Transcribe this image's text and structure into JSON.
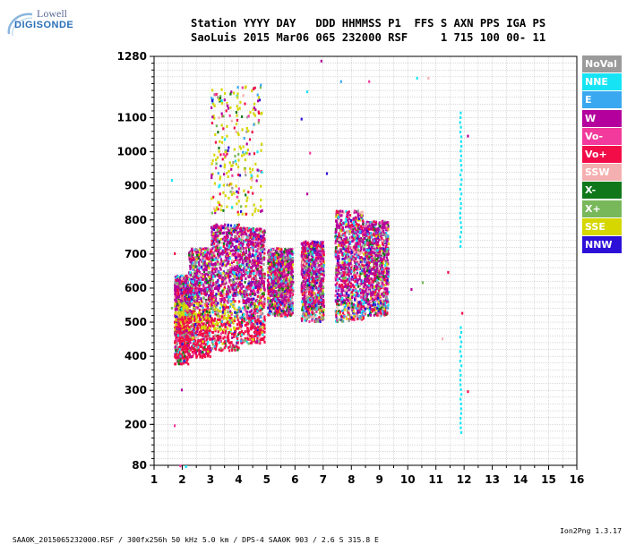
{
  "logo": {
    "line1": "Lowell",
    "line2": "DIGISONDE"
  },
  "header": {
    "line1": "Station YYYY DAY   DDD HHMMSS P1  FFS S AXN PPS IGA PS",
    "line2": "SaoLuis 2015 Mar06 065 232000 RSF     1 715 100 00- 11"
  },
  "legend": [
    {
      "label": "NoVal",
      "color": "#9a9a9a"
    },
    {
      "label": "NNE",
      "color": "#16e4f4"
    },
    {
      "label": "E",
      "color": "#3aa8f0"
    },
    {
      "label": "W",
      "color": "#b4009c"
    },
    {
      "label": "Vo-",
      "color": "#f23a9c"
    },
    {
      "label": "Vo+",
      "color": "#f20c48"
    },
    {
      "label": "SSW",
      "color": "#f4b0b0"
    },
    {
      "label": "X-",
      "color": "#10781a"
    },
    {
      "label": "X+",
      "color": "#78b85a"
    },
    {
      "label": "SSE",
      "color": "#d6d600"
    },
    {
      "label": "NNW",
      "color": "#2c10d8"
    }
  ],
  "chart_data": {
    "type": "scatter",
    "xlim": [
      1,
      16
    ],
    "ylim": [
      80,
      1280
    ],
    "x_ticks": [
      "1",
      "2",
      "3",
      "4",
      "5",
      "6",
      "7",
      "8",
      "9",
      "10",
      "11",
      "12",
      "13",
      "14",
      "15",
      "16"
    ],
    "y_ticks": [
      "80",
      "200",
      "300",
      "400",
      "500",
      "600",
      "700",
      "800",
      "900",
      "1000",
      "1100",
      "1280"
    ],
    "grid": true,
    "legend_position": "right",
    "clusters": [
      {
        "x": [
          1.7,
          2.2
        ],
        "y": [
          380,
          640
        ]
      },
      {
        "x": [
          2.2,
          3.0
        ],
        "y": [
          400,
          720
        ]
      },
      {
        "x": [
          3.0,
          4.0
        ],
        "y": [
          420,
          790
        ]
      },
      {
        "x": [
          4.0,
          4.9
        ],
        "y": [
          440,
          780
        ]
      },
      {
        "x": [
          5.0,
          5.9
        ],
        "y": [
          520,
          720
        ]
      },
      {
        "x": [
          6.2,
          7.0
        ],
        "y": [
          505,
          740
        ]
      },
      {
        "x": [
          7.4,
          8.4
        ],
        "y": [
          505,
          830
        ]
      },
      {
        "x": [
          8.4,
          9.3
        ],
        "y": [
          520,
          800
        ]
      }
    ],
    "sporadic": {
      "x": [
        3.0,
        4.8
      ],
      "y": [
        820,
        1200
      ]
    },
    "vertical_line": {
      "x": 11.85,
      "y": [
        180,
        1130
      ]
    }
  },
  "footer": {
    "left": "SAA0K_2015065232000.RSF / 300fx256h 50 kHz 5.0 km / DPS-4 SAA0K 903 / 2.6 S 315.8 E",
    "right": "Ion2Png 1.3.17"
  }
}
